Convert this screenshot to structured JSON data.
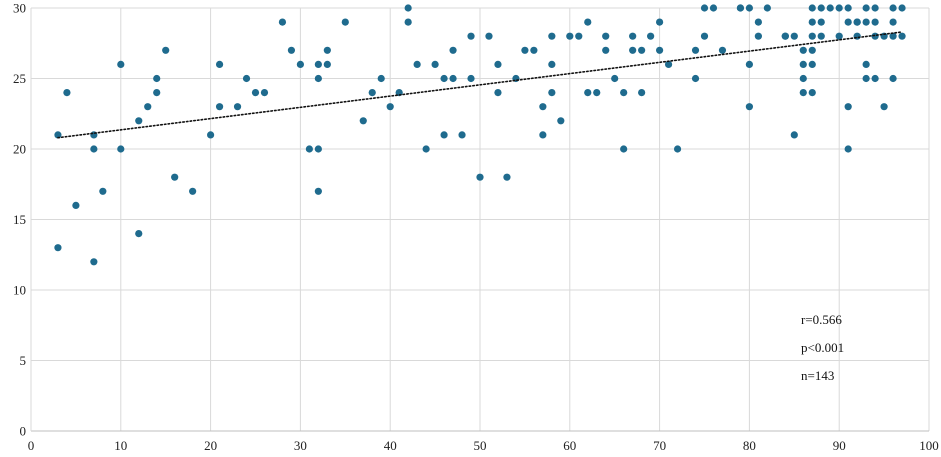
{
  "chart_data": {
    "type": "scatter",
    "title": "",
    "xlabel": "",
    "ylabel": "",
    "xlim": [
      0,
      100
    ],
    "ylim": [
      0,
      30
    ],
    "x_ticks": [
      0,
      10,
      20,
      30,
      40,
      50,
      60,
      70,
      80,
      90,
      100
    ],
    "y_ticks": [
      0,
      5,
      10,
      15,
      20,
      25,
      30
    ],
    "x_tick_labels": [
      "0",
      "10",
      "20",
      "30",
      "40",
      "50",
      "60",
      "70",
      "80",
      "90",
      "100"
    ],
    "y_tick_labels": [
      "0",
      "5",
      "10",
      "15",
      "20",
      "25",
      "30"
    ],
    "grid": true,
    "legend": "none",
    "point_color": "#1f6b8e",
    "trendline": {
      "x": [
        3,
        97
      ],
      "y": [
        20.8,
        28.3
      ],
      "style": "dotted",
      "color": "#111111"
    },
    "annotations": [
      "r=0.566",
      "p<0.001",
      "n=143"
    ],
    "points": [
      [
        3,
        21
      ],
      [
        3,
        13
      ],
      [
        4,
        24
      ],
      [
        5,
        16
      ],
      [
        7,
        21
      ],
      [
        7,
        20
      ],
      [
        7,
        12
      ],
      [
        8,
        17
      ],
      [
        10,
        26
      ],
      [
        10,
        20
      ],
      [
        12,
        14
      ],
      [
        13,
        23
      ],
      [
        14,
        25
      ],
      [
        14,
        24
      ],
      [
        15,
        27
      ],
      [
        16,
        18
      ],
      [
        18,
        17
      ],
      [
        20,
        21
      ],
      [
        21,
        26
      ],
      [
        21,
        23
      ],
      [
        23,
        23
      ],
      [
        24,
        25
      ],
      [
        25,
        24
      ],
      [
        28,
        29
      ],
      [
        29,
        27
      ],
      [
        30,
        26
      ],
      [
        31,
        20
      ],
      [
        32,
        26
      ],
      [
        32,
        25
      ],
      [
        32,
        20
      ],
      [
        32,
        17
      ],
      [
        33,
        27
      ],
      [
        33,
        26
      ],
      [
        35,
        29
      ],
      [
        37,
        22
      ],
      [
        38,
        24
      ],
      [
        39,
        25
      ],
      [
        41,
        24
      ],
      [
        42,
        30
      ],
      [
        42,
        29
      ],
      [
        43,
        26
      ],
      [
        44,
        20
      ],
      [
        46,
        25
      ],
      [
        46,
        21
      ],
      [
        47,
        27
      ],
      [
        47,
        25
      ],
      [
        48,
        21
      ],
      [
        49,
        28
      ],
      [
        49,
        25
      ],
      [
        50,
        18
      ],
      [
        51,
        28
      ],
      [
        52,
        26
      ],
      [
        52,
        24
      ],
      [
        53,
        18
      ],
      [
        54,
        25
      ],
      [
        55,
        27
      ],
      [
        57,
        23
      ],
      [
        57,
        21
      ],
      [
        58,
        28
      ],
      [
        58,
        26
      ],
      [
        58,
        24
      ],
      [
        59,
        22
      ],
      [
        60,
        28
      ],
      [
        62,
        29
      ],
      [
        62,
        24
      ],
      [
        63,
        24
      ],
      [
        64,
        28
      ],
      [
        64,
        27
      ],
      [
        65,
        25
      ],
      [
        66,
        20
      ],
      [
        67,
        28
      ],
      [
        67,
        27
      ],
      [
        68,
        27
      ],
      [
        68,
        24
      ],
      [
        69,
        28
      ],
      [
        70,
        29
      ],
      [
        70,
        27
      ],
      [
        72,
        20
      ],
      [
        74,
        27
      ],
      [
        74,
        25
      ],
      [
        75,
        30
      ],
      [
        75,
        28
      ],
      [
        76,
        30
      ],
      [
        77,
        27
      ],
      [
        79,
        30
      ],
      [
        80,
        30
      ],
      [
        80,
        26
      ],
      [
        80,
        23
      ],
      [
        81,
        29
      ],
      [
        81,
        28
      ],
      [
        82,
        30
      ],
      [
        84,
        28
      ],
      [
        85,
        28
      ],
      [
        85,
        21
      ],
      [
        86,
        27
      ],
      [
        86,
        26
      ],
      [
        86,
        25
      ],
      [
        86,
        24
      ],
      [
        87,
        30
      ],
      [
        87,
        29
      ],
      [
        87,
        28
      ],
      [
        87,
        27
      ],
      [
        87,
        26
      ],
      [
        87,
        24
      ],
      [
        88,
        30
      ],
      [
        88,
        29
      ],
      [
        88,
        28
      ],
      [
        89,
        30
      ],
      [
        90,
        30
      ],
      [
        90,
        28
      ],
      [
        91,
        30
      ],
      [
        91,
        29
      ],
      [
        91,
        23
      ],
      [
        91,
        20
      ],
      [
        92,
        29
      ],
      [
        92,
        28
      ],
      [
        93,
        30
      ],
      [
        93,
        29
      ],
      [
        93,
        26
      ],
      [
        93,
        25
      ],
      [
        94,
        30
      ],
      [
        94,
        29
      ],
      [
        94,
        28
      ],
      [
        94,
        25
      ],
      [
        95,
        28
      ],
      [
        95,
        23
      ],
      [
        96,
        30
      ],
      [
        96,
        29
      ],
      [
        96,
        28
      ],
      [
        96,
        25
      ],
      [
        97,
        30
      ],
      [
        97,
        28
      ],
      [
        92,
        29
      ],
      [
        84,
        28
      ],
      [
        79,
        30
      ],
      [
        61,
        28
      ],
      [
        45,
        26
      ],
      [
        26,
        24
      ],
      [
        12,
        22
      ],
      [
        66,
        24
      ],
      [
        71,
        26
      ],
      [
        56,
        27
      ],
      [
        40,
        23
      ]
    ]
  }
}
